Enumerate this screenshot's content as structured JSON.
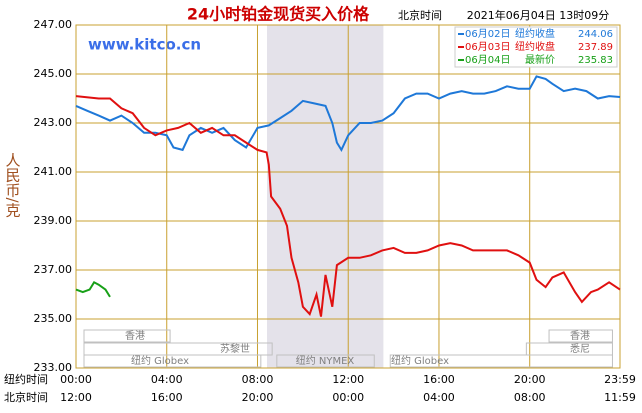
{
  "chart_data": {
    "type": "line",
    "title": "24小时铂金现货买入价格",
    "timezone_label": "北京时间",
    "timestamp": "2021年06月04日 13时09分",
    "watermark": "www.kitco.cn",
    "y_label": "人民币/克",
    "x_row_labels": [
      "纽约时间",
      "北京时间"
    ],
    "xlim": [
      0,
      23.98
    ],
    "ylim": [
      233,
      247
    ],
    "yticks": [
      {
        "value": 233,
        "label": "233.00"
      },
      {
        "value": 235,
        "label": "235.00"
      },
      {
        "value": 237,
        "label": "237.00"
      },
      {
        "value": 239,
        "label": "239.00"
      },
      {
        "value": 241,
        "label": "241.00"
      },
      {
        "value": 243,
        "label": "243.00"
      },
      {
        "value": 245,
        "label": "245.00"
      },
      {
        "value": 247,
        "label": "247.00"
      }
    ],
    "xticks": [
      {
        "value": 0,
        "label": "00:00"
      },
      {
        "value": 4,
        "label": "04:00"
      },
      {
        "value": 8,
        "label": "08:00"
      },
      {
        "value": 12,
        "label": "12:00"
      },
      {
        "value": 16,
        "label": "16:00"
      },
      {
        "value": 20,
        "label": "20:00"
      },
      {
        "value": 23.98,
        "label": "23:59"
      }
    ],
    "xticks_beijing": [
      "12:00",
      "16:00",
      "20:00",
      "00:00",
      "04:00",
      "08:00",
      "11:59"
    ],
    "grid": true,
    "shaded_range": [
      8.42,
      13.55
    ],
    "sessions": [
      "香港",
      "苏黎世",
      "纽约 Globex",
      "纽约 NYMEX",
      "纽约 Globex",
      "悉尼",
      "香港"
    ],
    "series": [
      {
        "name": "06月02日",
        "note": "纽约收盘",
        "close": 244.06,
        "color": "#1e78d8",
        "x": [
          0,
          0.5,
          1,
          1.5,
          2,
          2.5,
          3,
          3.5,
          4,
          4.3,
          4.7,
          5,
          5.5,
          6,
          6.5,
          7,
          7.5,
          8,
          8.5,
          9,
          9.5,
          10,
          10.5,
          11,
          11.3,
          11.5,
          11.7,
          12,
          12.5,
          13,
          13.5,
          14,
          14.5,
          15,
          15.5,
          16,
          16.5,
          17,
          17.5,
          18,
          18.5,
          19,
          19.5,
          20,
          20.3,
          20.7,
          21,
          21.5,
          22,
          22.5,
          23,
          23.5,
          23.98
        ],
        "values": [
          243.7,
          243.5,
          243.3,
          243.1,
          243.3,
          243.0,
          242.6,
          242.6,
          242.5,
          242.0,
          241.9,
          242.5,
          242.8,
          242.6,
          242.8,
          242.3,
          242.0,
          242.8,
          242.9,
          243.2,
          243.5,
          243.9,
          243.8,
          243.7,
          243.0,
          242.2,
          241.9,
          242.5,
          243.0,
          243.0,
          243.1,
          243.4,
          244.0,
          244.2,
          244.2,
          244.0,
          244.2,
          244.3,
          244.2,
          244.2,
          244.3,
          244.5,
          244.4,
          244.4,
          244.9,
          244.8,
          244.6,
          244.3,
          244.4,
          244.3,
          244.0,
          244.1,
          244.06
        ]
      },
      {
        "name": "06月03日",
        "note": "纽约收盘",
        "close": 237.89,
        "color": "#e01010",
        "x": [
          0,
          1,
          1.5,
          2,
          2.5,
          3,
          3.5,
          4,
          4.5,
          5,
          5.5,
          6,
          6.5,
          7,
          7.5,
          8,
          8.4,
          8.5,
          8.6,
          9,
          9.3,
          9.5,
          9.8,
          10,
          10.3,
          10.6,
          10.8,
          11,
          11.3,
          11.5,
          12,
          12.5,
          13,
          13.5,
          14,
          14.5,
          15,
          15.5,
          16,
          16.5,
          17,
          17.5,
          18,
          18.5,
          19,
          19.5,
          20,
          20.3,
          20.7,
          21,
          21.5,
          22,
          22.3,
          22.7,
          23,
          23.5,
          23.98
        ],
        "values": [
          244.1,
          244.0,
          244.0,
          243.6,
          243.4,
          242.8,
          242.5,
          242.7,
          242.8,
          243.0,
          242.6,
          242.8,
          242.5,
          242.5,
          242.2,
          241.9,
          241.8,
          241.3,
          240.0,
          239.5,
          238.8,
          237.5,
          236.5,
          235.5,
          235.2,
          236.0,
          235.1,
          236.8,
          235.5,
          237.2,
          237.5,
          237.5,
          237.6,
          237.8,
          237.9,
          237.7,
          237.7,
          237.8,
          238.0,
          238.1,
          238.0,
          237.8,
          237.8,
          237.8,
          237.8,
          237.6,
          237.3,
          236.6,
          236.3,
          236.7,
          236.9,
          236.1,
          235.7,
          236.1,
          236.2,
          236.5,
          236.2
        ]
      },
      {
        "name": "06月04日",
        "note": "最新价",
        "close": 235.83,
        "color": "#18a018",
        "x": [
          0,
          0.3,
          0.6,
          0.8,
          1,
          1.3,
          1.5
        ],
        "values": [
          236.2,
          236.1,
          236.2,
          236.5,
          236.4,
          236.2,
          235.9
        ]
      }
    ]
  }
}
